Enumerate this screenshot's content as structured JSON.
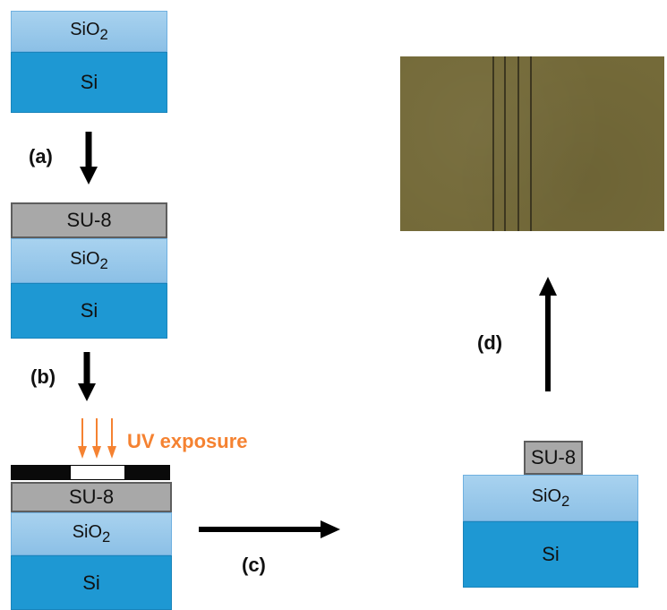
{
  "labels": {
    "sio2_main": "SiO",
    "sio2_sub": "2",
    "si": "Si",
    "su8": "SU-8",
    "uv": "UV exposure"
  },
  "steps": {
    "a": "(a)",
    "b": "(b)",
    "c": "(c)",
    "d": "(d)"
  },
  "colors": {
    "si": "#1e98d3",
    "sio2": "#9cc9ec",
    "su8": "#a8a8a8",
    "uv": "#f58231",
    "micrograph": "#746a39"
  }
}
